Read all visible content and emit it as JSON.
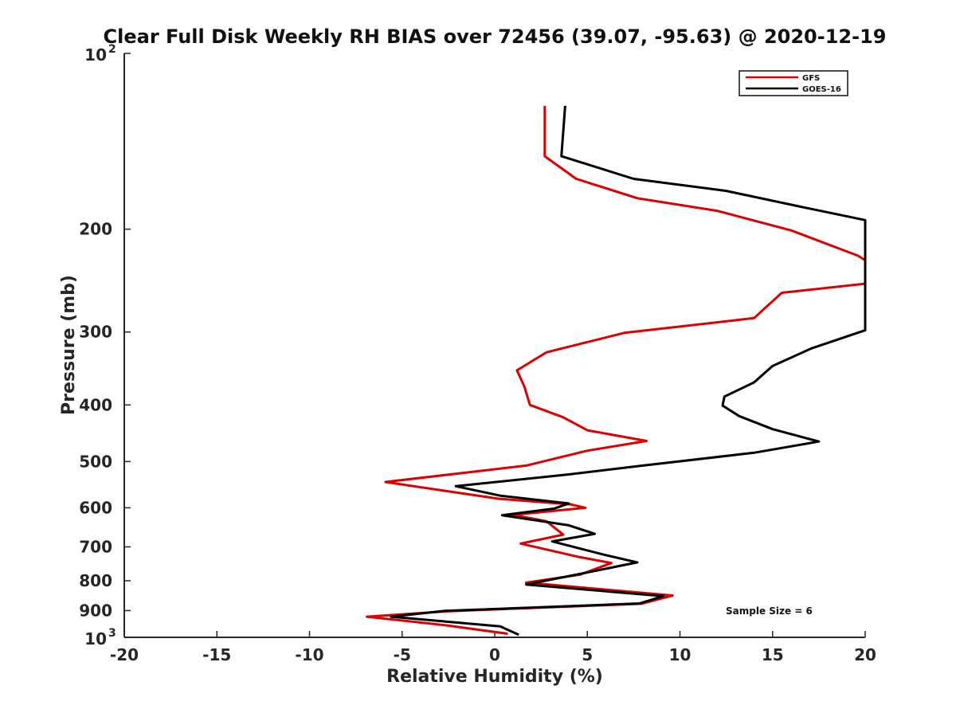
{
  "chart_data": {
    "type": "line",
    "title": "Clear Full Disk Weekly RH BIAS over 72456 (39.07, -95.63) @ 2020-12-19",
    "xlabel": "Relative Humidity (%)",
    "ylabel": "Pressure (mb)",
    "xlim": [
      -20,
      20
    ],
    "ylim": [
      100,
      1000
    ],
    "yscale": "log",
    "y_reversed": true,
    "xticks": [
      -20,
      -15,
      -10,
      -5,
      0,
      5,
      10,
      15,
      20
    ],
    "xtick_labels": [
      "-20",
      "-15",
      "-10",
      "-5",
      "0",
      "5",
      "10",
      "15",
      "20"
    ],
    "yticks": [
      200,
      300,
      400,
      500,
      600,
      700,
      800,
      900
    ],
    "ytick_labels": [
      "200",
      "300",
      "400",
      "500",
      "600",
      "700",
      "800",
      "900"
    ],
    "y_end_labels": {
      "top_base": "10",
      "top_exp": "2",
      "bottom_base": "10",
      "bottom_exp": "3"
    },
    "legend_position": "top-right",
    "annotation": "Sample Size = 6",
    "series": [
      {
        "name": "GFS",
        "color": "#dd0000",
        "x": [
          2.7,
          2.7,
          4.4,
          7.7,
          12.0,
          16.0,
          19.6,
          20.0,
          20.0,
          20.0,
          15.5,
          14.0,
          7.0,
          2.8,
          1.2,
          1.6,
          1.9,
          3.7,
          5.0,
          8.2,
          5.0,
          1.7,
          -5.9,
          0.2,
          4.1,
          4.9,
          1.0,
          2.8,
          3.7,
          1.4,
          4.6,
          6.3,
          4.6,
          1.7,
          9.6,
          7.9,
          -2.5,
          -6.9,
          -2.6,
          0.7
        ],
        "y": [
          123,
          150,
          164,
          177,
          186,
          201,
          222,
          226,
          245,
          248,
          257,
          284,
          301,
          325,
          349,
          372,
          400,
          420,
          442,
          461,
          479,
          508,
          542,
          579,
          592,
          600,
          617,
          633,
          667,
          691,
          729,
          746,
          781,
          806,
          848,
          876,
          902,
          922,
          954,
          986
        ]
      },
      {
        "name": "GOES-16",
        "color": "#000000",
        "x": [
          3.8,
          3.6,
          7.5,
          12.5,
          16.5,
          20.0,
          20.0,
          17.1,
          15.0,
          14.0,
          12.4,
          12.3,
          13.2,
          15.0,
          17.5,
          14.0,
          8.0,
          4.0,
          -2.1,
          0.3,
          4.0,
          3.2,
          0.4,
          4.0,
          5.4,
          3.1,
          5.9,
          7.7,
          4.5,
          1.7,
          9.1,
          7.8,
          -2.7,
          -5.6,
          0.3,
          1.3
        ],
        "y": [
          123,
          150,
          164,
          172,
          183,
          193,
          298,
          320,
          343,
          366,
          387,
          401,
          418,
          440,
          462,
          483,
          508,
          526,
          551,
          572,
          590,
          602,
          618,
          643,
          665,
          685,
          722,
          744,
          780,
          812,
          850,
          875,
          901,
          922,
          958,
          990
        ]
      }
    ]
  }
}
